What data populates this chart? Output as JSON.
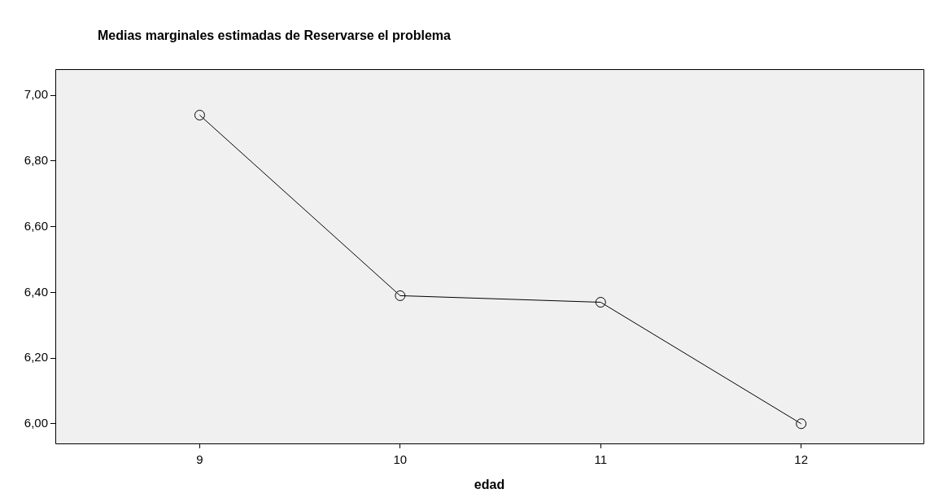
{
  "chart_data": {
    "type": "line",
    "title": "Medias marginales estimadas de Reservarse el problema",
    "xlabel": "edad",
    "x": [
      9,
      10,
      11,
      12
    ],
    "series": [
      {
        "color": "#000000",
        "values": [
          6.94,
          6.39,
          6.37,
          6.0
        ]
      }
    ],
    "xlim": [
      8.28,
      12.61
    ],
    "xticks": [
      9,
      10,
      11,
      12
    ],
    "ylim": [
      5.94,
      7.08
    ],
    "yticks": [
      {
        "value": 6,
        "label": "6,00"
      },
      {
        "value": 6.2,
        "label": "6,20"
      },
      {
        "value": 6.4,
        "label": "6,40"
      },
      {
        "value": 6.6,
        "label": "6,60"
      },
      {
        "value": 6.8,
        "label": "6,80"
      },
      {
        "value": 7,
        "label": "7,00"
      }
    ],
    "grid": false,
    "legend": false,
    "marker": "circle",
    "line_style": "solid"
  }
}
